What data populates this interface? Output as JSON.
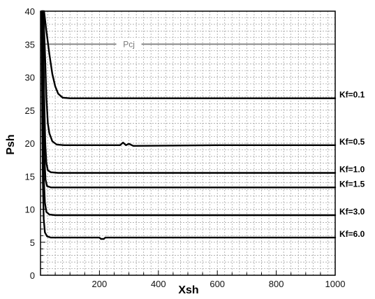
{
  "chart_data": {
    "type": "line",
    "title": "",
    "xlabel": "Xsh",
    "ylabel": "Psh",
    "xlim": [
      0,
      1000
    ],
    "ylim": [
      0,
      40
    ],
    "x_ticks": [
      200,
      400,
      600,
      800,
      1000
    ],
    "y_ticks": [
      0,
      5,
      10,
      15,
      20,
      25,
      30,
      35,
      40
    ],
    "grid": true,
    "reference_line": {
      "name": "Pcj",
      "y": 35,
      "color": "#8a8a8a",
      "label_x": 300
    },
    "series": [
      {
        "name": "Kf=0.1",
        "color": "#000000",
        "points": [
          [
            12,
            40
          ],
          [
            20,
            37
          ],
          [
            30,
            33.5
          ],
          [
            40,
            30.5
          ],
          [
            50,
            28.6
          ],
          [
            60,
            27.5
          ],
          [
            75,
            26.9
          ],
          [
            100,
            26.8
          ],
          [
            300,
            26.8
          ],
          [
            600,
            26.8
          ],
          [
            1000,
            26.8
          ]
        ]
      },
      {
        "name": "Kf=0.5",
        "color": "#000000",
        "points": [
          [
            10,
            40
          ],
          [
            15,
            34
          ],
          [
            20,
            27
          ],
          [
            25,
            23
          ],
          [
            30,
            21.5
          ],
          [
            40,
            20.3
          ],
          [
            55,
            19.8
          ],
          [
            80,
            19.7
          ],
          [
            270,
            19.7
          ],
          [
            280,
            20.1
          ],
          [
            290,
            19.7
          ],
          [
            300,
            19.9
          ],
          [
            315,
            19.6
          ],
          [
            600,
            19.7
          ],
          [
            1000,
            19.7
          ]
        ]
      },
      {
        "name": "Kf=1.0",
        "color": "#000000",
        "points": [
          [
            8,
            40
          ],
          [
            12,
            28
          ],
          [
            16,
            20
          ],
          [
            20,
            17
          ],
          [
            25,
            15.9
          ],
          [
            35,
            15.6
          ],
          [
            60,
            15.5
          ],
          [
            1000,
            15.5
          ]
        ]
      },
      {
        "name": "Kf=1.5",
        "color": "#000000",
        "points": [
          [
            7,
            40
          ],
          [
            10,
            26
          ],
          [
            13,
            18
          ],
          [
            17,
            14.5
          ],
          [
            22,
            13.5
          ],
          [
            35,
            13.3
          ],
          [
            1000,
            13.3
          ]
        ]
      },
      {
        "name": "Kf=3.0",
        "color": "#000000",
        "points": [
          [
            5,
            40
          ],
          [
            8,
            24
          ],
          [
            11,
            15
          ],
          [
            15,
            11
          ],
          [
            20,
            9.6
          ],
          [
            30,
            9.2
          ],
          [
            50,
            9.1
          ],
          [
            1000,
            9.1
          ]
        ]
      },
      {
        "name": "Kf=6.0",
        "color": "#000000",
        "points": [
          [
            4,
            40
          ],
          [
            6,
            24
          ],
          [
            8,
            14
          ],
          [
            11,
            8.5
          ],
          [
            15,
            6.5
          ],
          [
            22,
            5.9
          ],
          [
            35,
            5.7
          ],
          [
            200,
            5.7
          ],
          [
            205,
            5.5
          ],
          [
            215,
            5.5
          ],
          [
            220,
            5.7
          ],
          [
            1000,
            5.7
          ]
        ]
      }
    ]
  }
}
